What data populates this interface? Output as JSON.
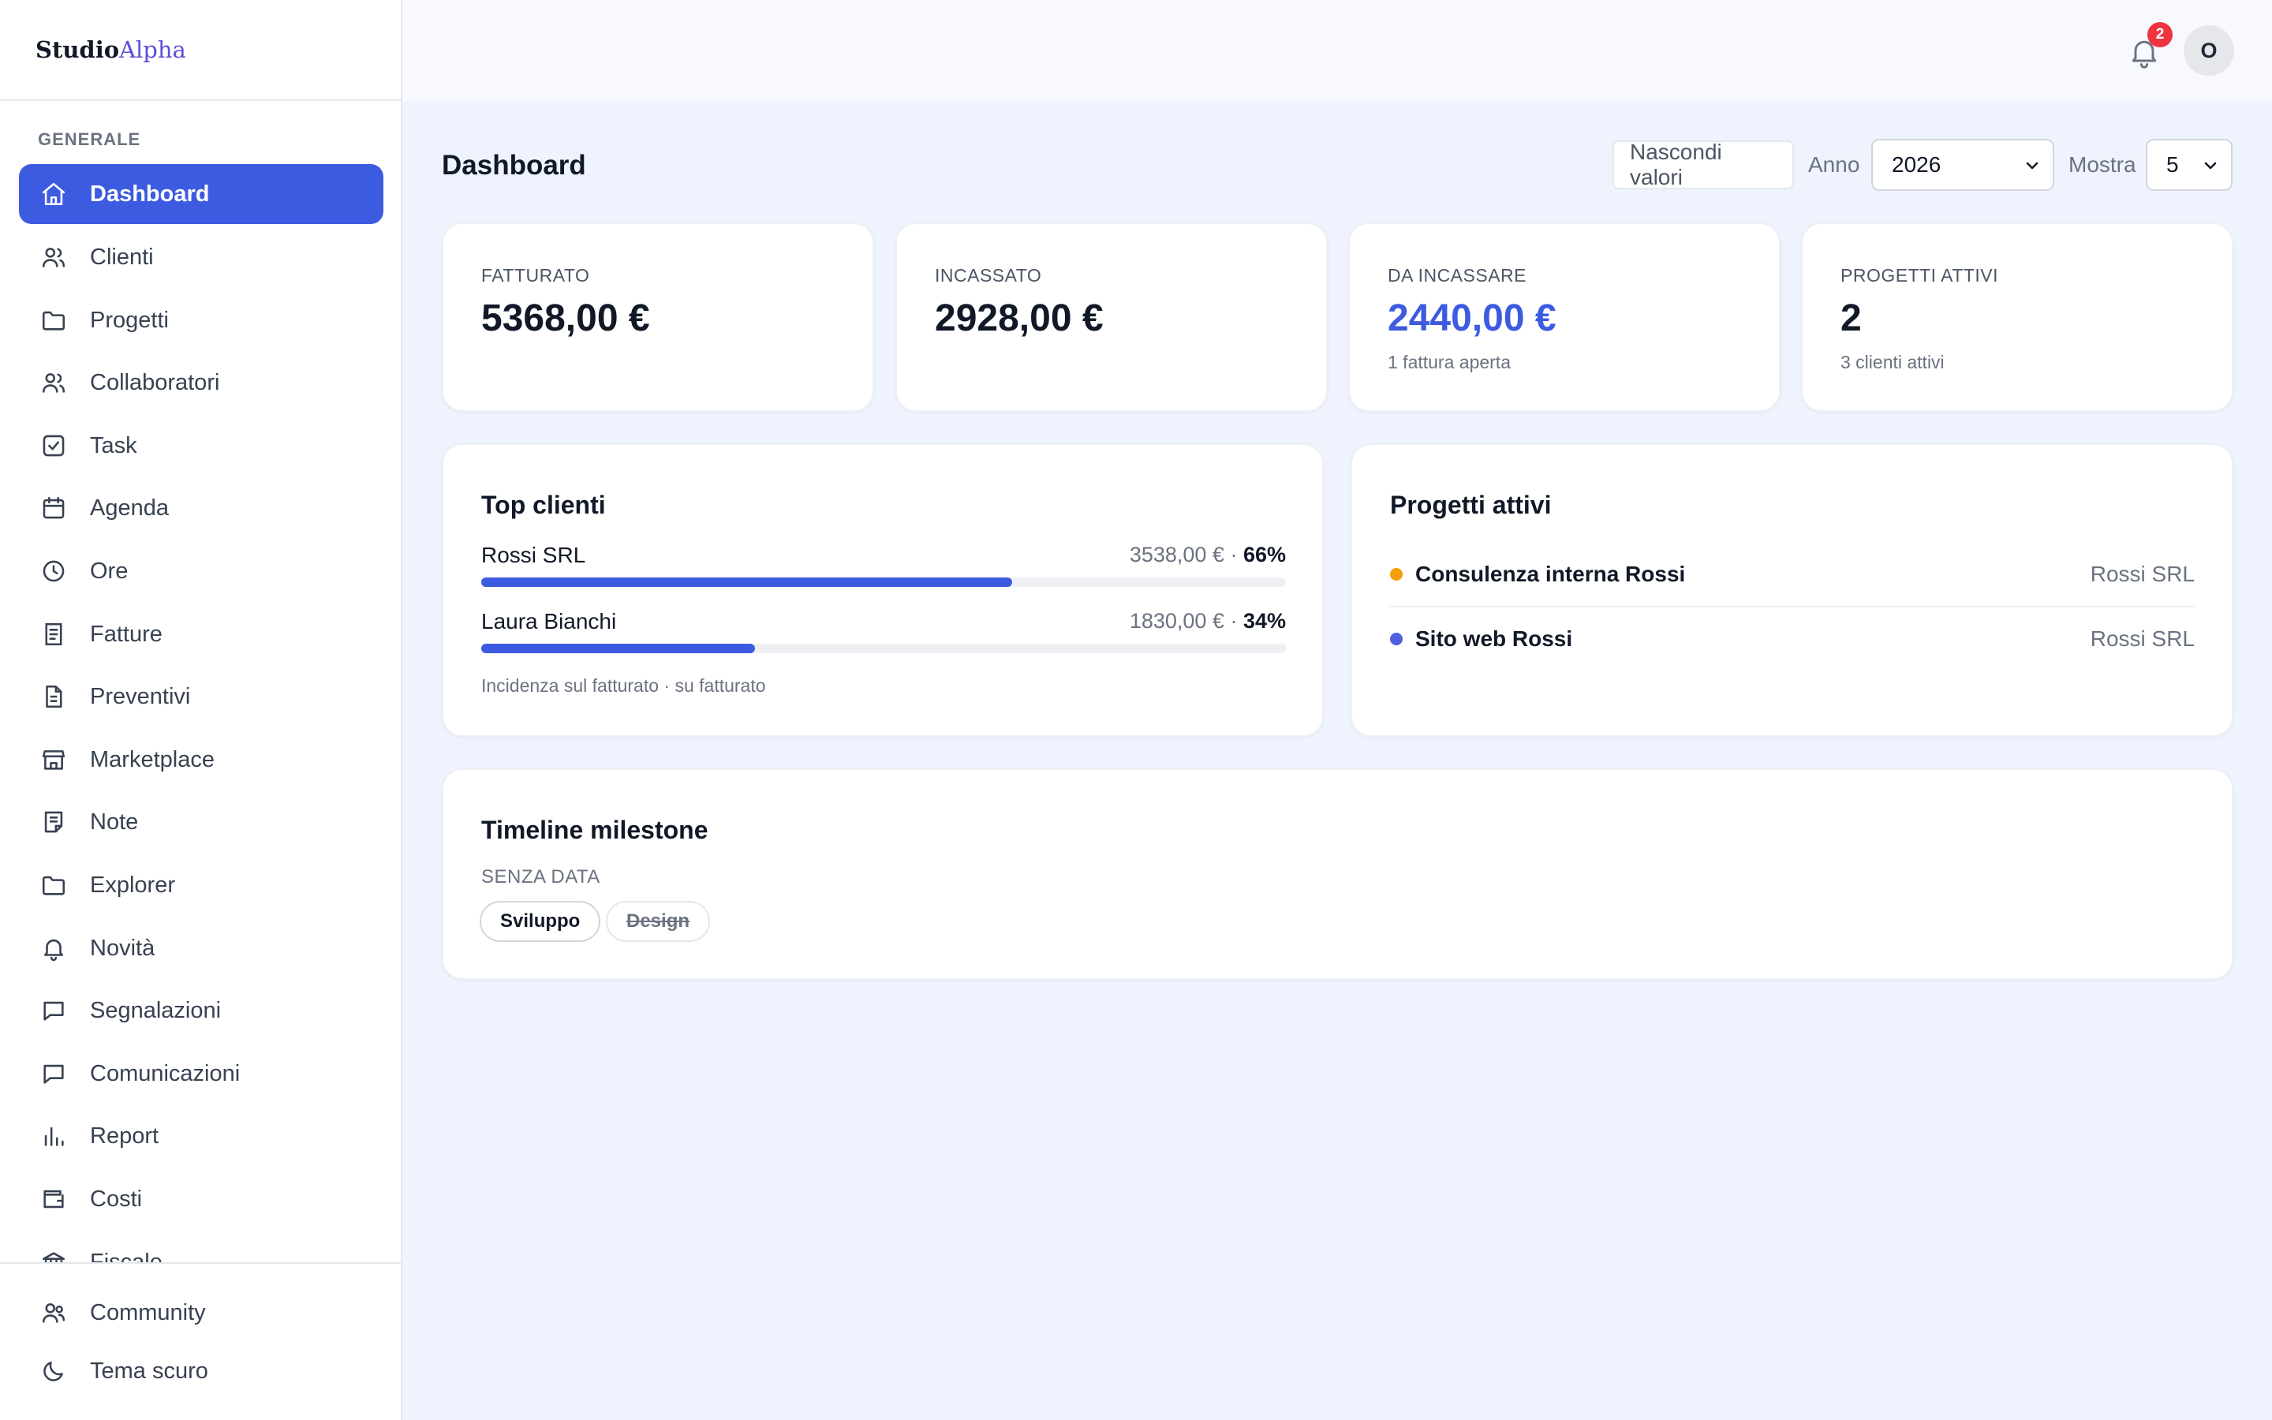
{
  "brand": {
    "part1": "Studio",
    "part2": "Alpha"
  },
  "sidebar": {
    "section_label": "GENERALE",
    "items": [
      {
        "label": "Dashboard",
        "icon": "home-icon",
        "active": true
      },
      {
        "label": "Clienti",
        "icon": "users-icon"
      },
      {
        "label": "Progetti",
        "icon": "folder-icon"
      },
      {
        "label": "Collaboratori",
        "icon": "users-icon"
      },
      {
        "label": "Task",
        "icon": "checkbox-icon"
      },
      {
        "label": "Agenda",
        "icon": "calendar-icon"
      },
      {
        "label": "Ore",
        "icon": "clock-icon"
      },
      {
        "label": "Fatture",
        "icon": "invoice-icon"
      },
      {
        "label": "Preventivi",
        "icon": "file-icon"
      },
      {
        "label": "Marketplace",
        "icon": "store-icon"
      },
      {
        "label": "Note",
        "icon": "note-icon"
      },
      {
        "label": "Explorer",
        "icon": "folder-icon"
      },
      {
        "label": "Novità",
        "icon": "bell-icon"
      },
      {
        "label": "Segnalazioni",
        "icon": "message-icon"
      },
      {
        "label": "Comunicazioni",
        "icon": "message-icon"
      },
      {
        "label": "Report",
        "icon": "bar-chart-icon"
      },
      {
        "label": "Costi",
        "icon": "wallet-icon"
      },
      {
        "label": "Fiscale",
        "icon": "bank-icon"
      }
    ],
    "bottom_items": [
      {
        "label": "Community",
        "icon": "users-icon"
      },
      {
        "label": "Tema scuro",
        "icon": "moon-icon"
      }
    ]
  },
  "topbar": {
    "notifications_count": "2",
    "avatar_initial": "O"
  },
  "main": {
    "title": "Dashboard",
    "controls": {
      "hide_values_label": "Nascondi valori",
      "year_label": "Anno",
      "year_value": "2026",
      "show_label": "Mostra",
      "show_value": "5"
    },
    "kpis": [
      {
        "label": "FATTURATO",
        "value": "5368,00 €",
        "sub": "",
        "accent": false
      },
      {
        "label": "INCASSATO",
        "value": "2928,00 €",
        "sub": "",
        "accent": false
      },
      {
        "label": "DA INCASSARE",
        "value": "2440,00 €",
        "sub": "1 fattura aperta",
        "accent": true
      },
      {
        "label": "PROGETTI ATTIVI",
        "value": "2",
        "sub": "3 clienti attivi",
        "accent": false
      }
    ],
    "top_clients": {
      "title": "Top clienti",
      "rows": [
        {
          "name": "Rossi SRL",
          "amount": "3538,00 € · ",
          "percent": "66%",
          "share": 0.66
        },
        {
          "name": "Laura Bianchi",
          "amount": "1830,00 € · ",
          "percent": "34%",
          "share": 0.34
        }
      ],
      "footer": "Incidenza sul fatturato · su fatturato"
    },
    "active_projects": {
      "title": "Progetti attivi",
      "rows": [
        {
          "name": "Consulenza interna Rossi",
          "client": "Rossi SRL",
          "dot_color": "#f59e0b"
        },
        {
          "name": "Sito web Rossi",
          "client": "Rossi SRL",
          "dot_color": "#4f5fe0"
        }
      ]
    },
    "milestones": {
      "title": "Timeline milestone",
      "section": "SENZA DATA",
      "tags": [
        {
          "label": "Sviluppo",
          "done": false
        },
        {
          "label": "Design",
          "done": true
        }
      ]
    }
  },
  "colors": {
    "accent": "#3d5be0",
    "badge": "#ef3340",
    "background": "#eef3fe"
  }
}
